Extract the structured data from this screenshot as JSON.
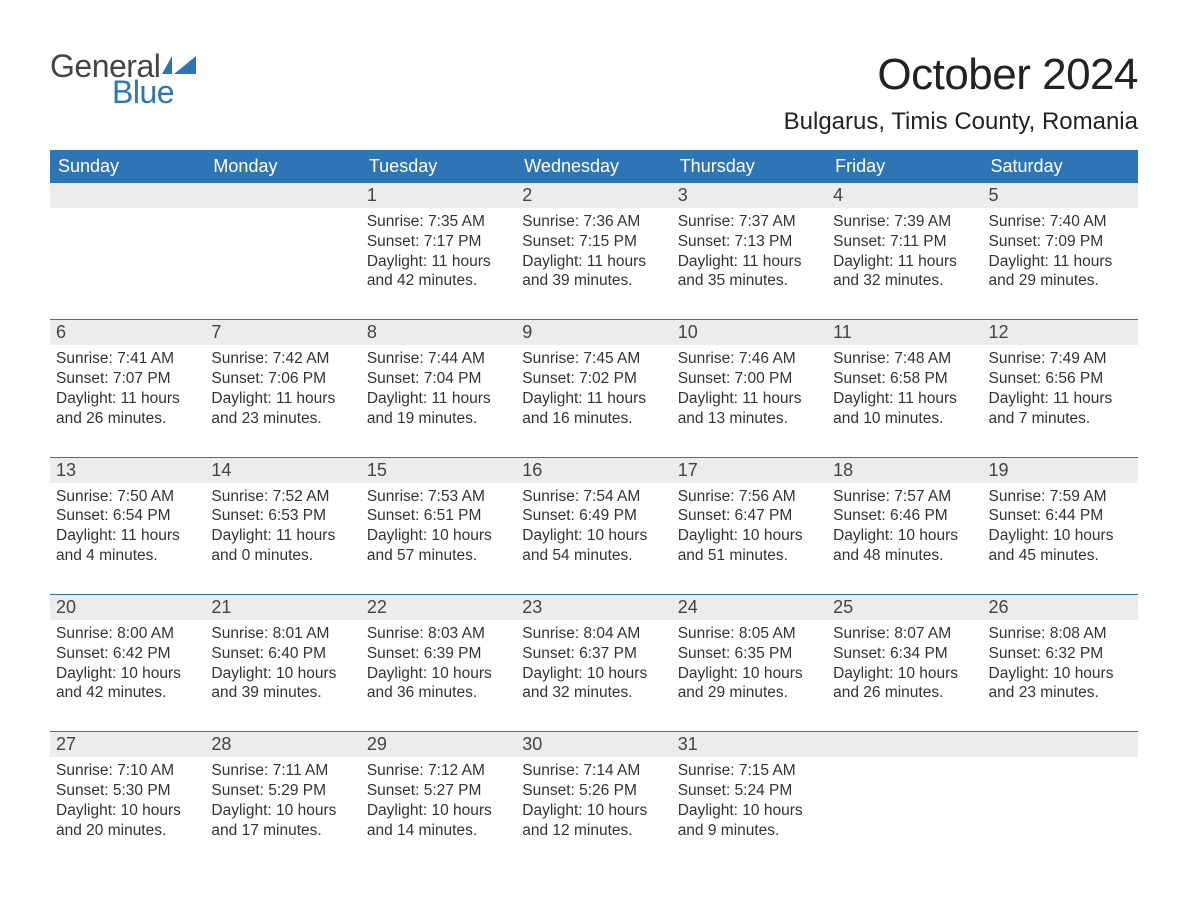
{
  "brand": {
    "part1": "General",
    "part2": "Blue",
    "flag_color": "#2e75b6",
    "text_gray": "#444444"
  },
  "title": "October 2024",
  "location": "Bulgarus, Timis County, Romania",
  "colors": {
    "header_bg": "#2e75b6",
    "header_text": "#ffffff",
    "daynum_bg": "#ececec",
    "body_text": "#333333",
    "rule": "#2e75b6",
    "page_bg": "#ffffff"
  },
  "typography": {
    "title_fontsize": 44,
    "location_fontsize": 24,
    "dow_fontsize": 18,
    "daynum_fontsize": 18,
    "body_fontsize": 15.5,
    "font_family": "Arial"
  },
  "layout": {
    "columns": 7,
    "rows": 5,
    "leading_blanks": 2,
    "trailing_blanks": 2
  },
  "days_of_week": [
    "Sunday",
    "Monday",
    "Tuesday",
    "Wednesday",
    "Thursday",
    "Friday",
    "Saturday"
  ],
  "days": [
    {
      "n": "1",
      "sunrise": "Sunrise: 7:35 AM",
      "sunset": "Sunset: 7:17 PM",
      "dl1": "Daylight: 11 hours",
      "dl2": "and 42 minutes."
    },
    {
      "n": "2",
      "sunrise": "Sunrise: 7:36 AM",
      "sunset": "Sunset: 7:15 PM",
      "dl1": "Daylight: 11 hours",
      "dl2": "and 39 minutes."
    },
    {
      "n": "3",
      "sunrise": "Sunrise: 7:37 AM",
      "sunset": "Sunset: 7:13 PM",
      "dl1": "Daylight: 11 hours",
      "dl2": "and 35 minutes."
    },
    {
      "n": "4",
      "sunrise": "Sunrise: 7:39 AM",
      "sunset": "Sunset: 7:11 PM",
      "dl1": "Daylight: 11 hours",
      "dl2": "and 32 minutes."
    },
    {
      "n": "5",
      "sunrise": "Sunrise: 7:40 AM",
      "sunset": "Sunset: 7:09 PM",
      "dl1": "Daylight: 11 hours",
      "dl2": "and 29 minutes."
    },
    {
      "n": "6",
      "sunrise": "Sunrise: 7:41 AM",
      "sunset": "Sunset: 7:07 PM",
      "dl1": "Daylight: 11 hours",
      "dl2": "and 26 minutes."
    },
    {
      "n": "7",
      "sunrise": "Sunrise: 7:42 AM",
      "sunset": "Sunset: 7:06 PM",
      "dl1": "Daylight: 11 hours",
      "dl2": "and 23 minutes."
    },
    {
      "n": "8",
      "sunrise": "Sunrise: 7:44 AM",
      "sunset": "Sunset: 7:04 PM",
      "dl1": "Daylight: 11 hours",
      "dl2": "and 19 minutes."
    },
    {
      "n": "9",
      "sunrise": "Sunrise: 7:45 AM",
      "sunset": "Sunset: 7:02 PM",
      "dl1": "Daylight: 11 hours",
      "dl2": "and 16 minutes."
    },
    {
      "n": "10",
      "sunrise": "Sunrise: 7:46 AM",
      "sunset": "Sunset: 7:00 PM",
      "dl1": "Daylight: 11 hours",
      "dl2": "and 13 minutes."
    },
    {
      "n": "11",
      "sunrise": "Sunrise: 7:48 AM",
      "sunset": "Sunset: 6:58 PM",
      "dl1": "Daylight: 11 hours",
      "dl2": "and 10 minutes."
    },
    {
      "n": "12",
      "sunrise": "Sunrise: 7:49 AM",
      "sunset": "Sunset: 6:56 PM",
      "dl1": "Daylight: 11 hours",
      "dl2": "and 7 minutes."
    },
    {
      "n": "13",
      "sunrise": "Sunrise: 7:50 AM",
      "sunset": "Sunset: 6:54 PM",
      "dl1": "Daylight: 11 hours",
      "dl2": "and 4 minutes."
    },
    {
      "n": "14",
      "sunrise": "Sunrise: 7:52 AM",
      "sunset": "Sunset: 6:53 PM",
      "dl1": "Daylight: 11 hours",
      "dl2": "and 0 minutes."
    },
    {
      "n": "15",
      "sunrise": "Sunrise: 7:53 AM",
      "sunset": "Sunset: 6:51 PM",
      "dl1": "Daylight: 10 hours",
      "dl2": "and 57 minutes."
    },
    {
      "n": "16",
      "sunrise": "Sunrise: 7:54 AM",
      "sunset": "Sunset: 6:49 PM",
      "dl1": "Daylight: 10 hours",
      "dl2": "and 54 minutes."
    },
    {
      "n": "17",
      "sunrise": "Sunrise: 7:56 AM",
      "sunset": "Sunset: 6:47 PM",
      "dl1": "Daylight: 10 hours",
      "dl2": "and 51 minutes."
    },
    {
      "n": "18",
      "sunrise": "Sunrise: 7:57 AM",
      "sunset": "Sunset: 6:46 PM",
      "dl1": "Daylight: 10 hours",
      "dl2": "and 48 minutes."
    },
    {
      "n": "19",
      "sunrise": "Sunrise: 7:59 AM",
      "sunset": "Sunset: 6:44 PM",
      "dl1": "Daylight: 10 hours",
      "dl2": "and 45 minutes."
    },
    {
      "n": "20",
      "sunrise": "Sunrise: 8:00 AM",
      "sunset": "Sunset: 6:42 PM",
      "dl1": "Daylight: 10 hours",
      "dl2": "and 42 minutes."
    },
    {
      "n": "21",
      "sunrise": "Sunrise: 8:01 AM",
      "sunset": "Sunset: 6:40 PM",
      "dl1": "Daylight: 10 hours",
      "dl2": "and 39 minutes."
    },
    {
      "n": "22",
      "sunrise": "Sunrise: 8:03 AM",
      "sunset": "Sunset: 6:39 PM",
      "dl1": "Daylight: 10 hours",
      "dl2": "and 36 minutes."
    },
    {
      "n": "23",
      "sunrise": "Sunrise: 8:04 AM",
      "sunset": "Sunset: 6:37 PM",
      "dl1": "Daylight: 10 hours",
      "dl2": "and 32 minutes."
    },
    {
      "n": "24",
      "sunrise": "Sunrise: 8:05 AM",
      "sunset": "Sunset: 6:35 PM",
      "dl1": "Daylight: 10 hours",
      "dl2": "and 29 minutes."
    },
    {
      "n": "25",
      "sunrise": "Sunrise: 8:07 AM",
      "sunset": "Sunset: 6:34 PM",
      "dl1": "Daylight: 10 hours",
      "dl2": "and 26 minutes."
    },
    {
      "n": "26",
      "sunrise": "Sunrise: 8:08 AM",
      "sunset": "Sunset: 6:32 PM",
      "dl1": "Daylight: 10 hours",
      "dl2": "and 23 minutes."
    },
    {
      "n": "27",
      "sunrise": "Sunrise: 7:10 AM",
      "sunset": "Sunset: 5:30 PM",
      "dl1": "Daylight: 10 hours",
      "dl2": "and 20 minutes."
    },
    {
      "n": "28",
      "sunrise": "Sunrise: 7:11 AM",
      "sunset": "Sunset: 5:29 PM",
      "dl1": "Daylight: 10 hours",
      "dl2": "and 17 minutes."
    },
    {
      "n": "29",
      "sunrise": "Sunrise: 7:12 AM",
      "sunset": "Sunset: 5:27 PM",
      "dl1": "Daylight: 10 hours",
      "dl2": "and 14 minutes."
    },
    {
      "n": "30",
      "sunrise": "Sunrise: 7:14 AM",
      "sunset": "Sunset: 5:26 PM",
      "dl1": "Daylight: 10 hours",
      "dl2": "and 12 minutes."
    },
    {
      "n": "31",
      "sunrise": "Sunrise: 7:15 AM",
      "sunset": "Sunset: 5:24 PM",
      "dl1": "Daylight: 10 hours",
      "dl2": "and 9 minutes."
    }
  ]
}
